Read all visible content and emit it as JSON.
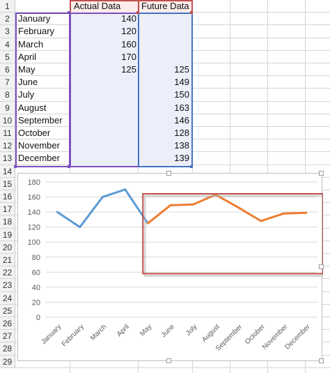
{
  "rows": [
    "1",
    "2",
    "3",
    "4",
    "5",
    "6",
    "7",
    "8",
    "9",
    "10",
    "11",
    "12",
    "13",
    "14",
    "15",
    "16",
    "17",
    "18",
    "19",
    "20",
    "21",
    "22",
    "23",
    "24",
    "25",
    "26",
    "27",
    "28",
    "29"
  ],
  "headers": {
    "actual": "Actual Data",
    "future": "Future Data"
  },
  "table": [
    {
      "month": "January",
      "actual": "140",
      "future": ""
    },
    {
      "month": "February",
      "actual": "120",
      "future": ""
    },
    {
      "month": "March",
      "actual": "160",
      "future": ""
    },
    {
      "month": "April",
      "actual": "170",
      "future": ""
    },
    {
      "month": "May",
      "actual": "125",
      "future": "125"
    },
    {
      "month": "June",
      "actual": "",
      "future": "149"
    },
    {
      "month": "July",
      "actual": "",
      "future": "150"
    },
    {
      "month": "August",
      "actual": "",
      "future": "163"
    },
    {
      "month": "September",
      "actual": "",
      "future": "146"
    },
    {
      "month": "October",
      "actual": "",
      "future": "128"
    },
    {
      "month": "November",
      "actual": "",
      "future": "138"
    },
    {
      "month": "December",
      "actual": "",
      "future": "139"
    }
  ],
  "colors": {
    "actual": "#5b9bd5",
    "future": "#ed7d31",
    "highlight": "#c0504d",
    "actualRange": "#7b4fbd",
    "futureRange": "#4472c4"
  },
  "chart_data": {
    "type": "line",
    "categories": [
      "January",
      "February",
      "March",
      "April",
      "May",
      "June",
      "July",
      "August",
      "September",
      "October",
      "November",
      "December"
    ],
    "series": [
      {
        "values": [
          140,
          120,
          160,
          170,
          125,
          null,
          null,
          null,
          null,
          null,
          null,
          null
        ]
      },
      {
        "values": [
          null,
          null,
          null,
          null,
          125,
          149,
          150,
          163,
          146,
          128,
          138,
          139
        ]
      }
    ],
    "ylim": [
      0,
      180
    ],
    "yticks": [
      "0",
      "20",
      "40",
      "60",
      "80",
      "100",
      "120",
      "140",
      "160",
      "180"
    ],
    "grid": true,
    "legend": "none"
  }
}
